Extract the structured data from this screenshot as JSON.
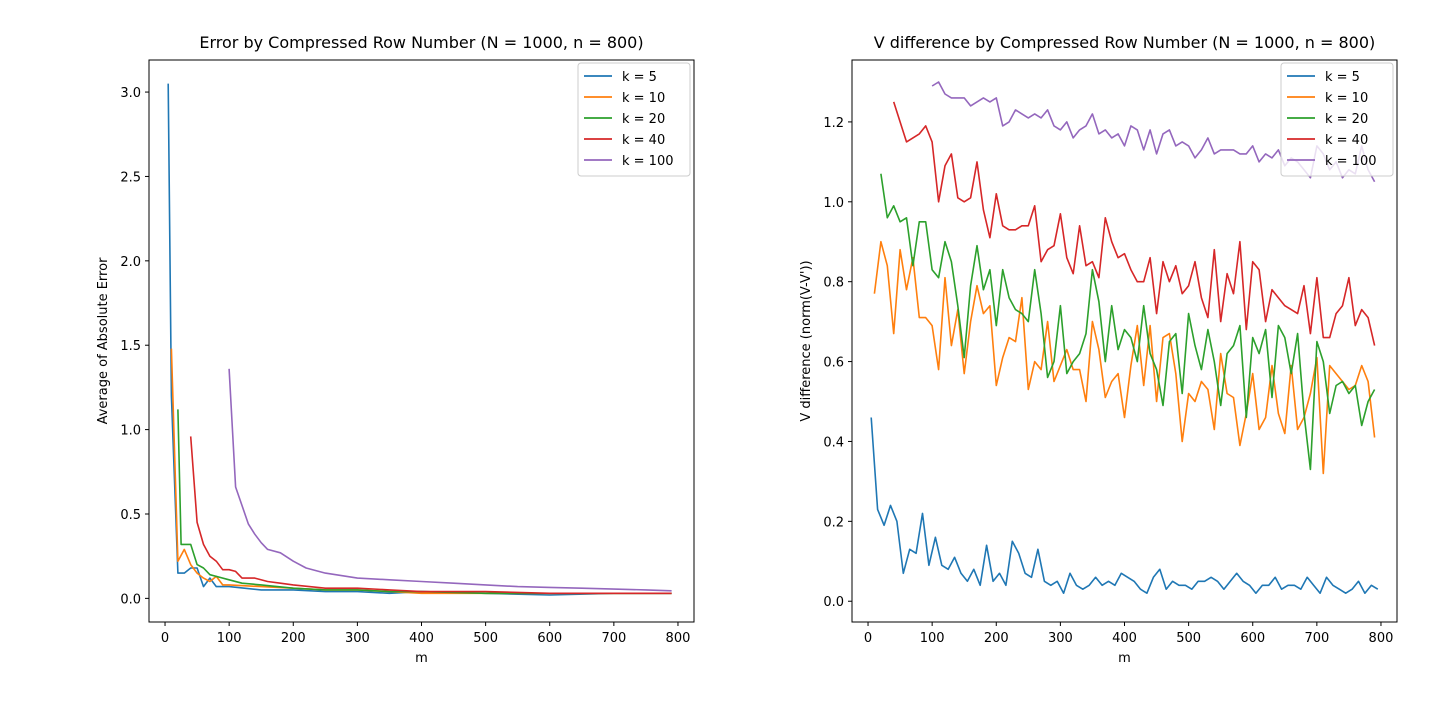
{
  "chart_data": [
    {
      "type": "line",
      "title": "Error by Compressed Row Number (N = 1000, n = 800)",
      "xlabel": "m",
      "ylabel": "Average of Absolute Error",
      "xlim": [
        -25,
        825
      ],
      "ylim": [
        -0.14,
        3.19
      ],
      "xticks": [
        "0",
        "100",
        "200",
        "300",
        "400",
        "500",
        "600",
        "700",
        "800"
      ],
      "yticks": [
        "0.0",
        "0.5",
        "1.0",
        "1.5",
        "2.0",
        "2.5",
        "3.0"
      ],
      "grid": false,
      "legend_position": "top-right",
      "series": [
        {
          "name": "k = 5",
          "color": "#1f77b4",
          "x": [
            5,
            10,
            20,
            30,
            40,
            50,
            60,
            70,
            80,
            90,
            100,
            150,
            200,
            250,
            300,
            350,
            400,
            500,
            600,
            700,
            790
          ],
          "y": [
            3.05,
            1.2,
            0.15,
            0.15,
            0.18,
            0.18,
            0.07,
            0.12,
            0.07,
            0.07,
            0.07,
            0.05,
            0.05,
            0.04,
            0.04,
            0.03,
            0.04,
            0.03,
            0.02,
            0.03,
            0.03
          ]
        },
        {
          "name": "k = 10",
          "color": "#ff7f0e",
          "x": [
            10,
            20,
            30,
            40,
            50,
            60,
            70,
            80,
            90,
            100,
            150,
            200,
            250,
            300,
            350,
            400,
            500,
            600,
            700,
            790
          ],
          "y": [
            1.48,
            0.22,
            0.29,
            0.2,
            0.15,
            0.12,
            0.1,
            0.13,
            0.08,
            0.08,
            0.07,
            0.06,
            0.05,
            0.05,
            0.04,
            0.03,
            0.03,
            0.03,
            0.03,
            0.03
          ]
        },
        {
          "name": "k = 20",
          "color": "#2ca02c",
          "x": [
            20,
            25,
            30,
            40,
            50,
            60,
            70,
            80,
            100,
            120,
            150,
            200,
            250,
            300,
            350,
            400,
            500,
            600,
            700,
            790
          ],
          "y": [
            1.12,
            0.32,
            0.32,
            0.32,
            0.2,
            0.18,
            0.14,
            0.13,
            0.11,
            0.09,
            0.08,
            0.06,
            0.05,
            0.05,
            0.04,
            0.04,
            0.03,
            0.03,
            0.03,
            0.03
          ]
        },
        {
          "name": "k = 40",
          "color": "#d62728",
          "x": [
            40,
            50,
            60,
            70,
            80,
            90,
            100,
            110,
            120,
            140,
            160,
            180,
            200,
            250,
            300,
            350,
            400,
            500,
            600,
            700,
            790
          ],
          "y": [
            0.96,
            0.45,
            0.32,
            0.25,
            0.22,
            0.17,
            0.17,
            0.16,
            0.12,
            0.12,
            0.1,
            0.09,
            0.08,
            0.06,
            0.06,
            0.05,
            0.04,
            0.04,
            0.03,
            0.03,
            0.03
          ]
        },
        {
          "name": "k = 100",
          "color": "#9467bd",
          "x": [
            100,
            110,
            120,
            130,
            140,
            150,
            160,
            180,
            200,
            220,
            250,
            300,
            350,
            400,
            450,
            500,
            550,
            600,
            650,
            700,
            750,
            790
          ],
          "y": [
            1.36,
            0.66,
            0.55,
            0.44,
            0.38,
            0.33,
            0.29,
            0.27,
            0.22,
            0.18,
            0.15,
            0.12,
            0.11,
            0.1,
            0.09,
            0.08,
            0.07,
            0.065,
            0.06,
            0.055,
            0.05,
            0.045
          ]
        }
      ]
    },
    {
      "type": "line",
      "title": "V difference by Compressed Row Number (N = 1000, n = 800)",
      "xlabel": "m",
      "ylabel": "V difference (norm(V-V'))",
      "xlim": [
        -25,
        825
      ],
      "ylim": [
        -0.052,
        1.355
      ],
      "xticks": [
        "0",
        "100",
        "200",
        "300",
        "400",
        "500",
        "600",
        "700",
        "800"
      ],
      "yticks": [
        "0.0",
        "0.2",
        "0.4",
        "0.6",
        "0.8",
        "1.0",
        "1.2"
      ],
      "grid": false,
      "legend_position": "top-right",
      "series": [
        {
          "name": "k = 5",
          "color": "#1f77b4",
          "x": [
            5,
            15,
            25,
            35,
            45,
            55,
            65,
            75,
            85,
            95,
            105,
            115,
            125,
            135,
            145,
            155,
            165,
            175,
            185,
            195,
            205,
            215,
            225,
            235,
            245,
            255,
            265,
            275,
            285,
            295,
            305,
            315,
            325,
            335,
            345,
            355,
            365,
            375,
            385,
            395,
            405,
            415,
            425,
            435,
            445,
            455,
            465,
            475,
            485,
            495,
            505,
            515,
            525,
            535,
            545,
            555,
            565,
            575,
            585,
            595,
            605,
            615,
            625,
            635,
            645,
            655,
            665,
            675,
            685,
            695,
            705,
            715,
            725,
            735,
            745,
            755,
            765,
            775,
            785,
            795
          ],
          "y": [
            0.46,
            0.23,
            0.19,
            0.24,
            0.2,
            0.07,
            0.13,
            0.12,
            0.22,
            0.09,
            0.16,
            0.09,
            0.08,
            0.11,
            0.07,
            0.05,
            0.08,
            0.04,
            0.14,
            0.05,
            0.07,
            0.04,
            0.15,
            0.12,
            0.07,
            0.06,
            0.13,
            0.05,
            0.04,
            0.05,
            0.02,
            0.07,
            0.04,
            0.03,
            0.04,
            0.06,
            0.04,
            0.05,
            0.04,
            0.07,
            0.06,
            0.05,
            0.03,
            0.02,
            0.06,
            0.08,
            0.03,
            0.05,
            0.04,
            0.04,
            0.03,
            0.05,
            0.05,
            0.06,
            0.05,
            0.03,
            0.05,
            0.07,
            0.05,
            0.04,
            0.02,
            0.04,
            0.04,
            0.06,
            0.03,
            0.04,
            0.04,
            0.03,
            0.06,
            0.04,
            0.02,
            0.06,
            0.04,
            0.03,
            0.02,
            0.03,
            0.05,
            0.02,
            0.04,
            0.03
          ]
        },
        {
          "name": "k = 10",
          "color": "#ff7f0e",
          "x": [
            10,
            20,
            30,
            40,
            50,
            60,
            70,
            80,
            90,
            100,
            110,
            120,
            130,
            140,
            150,
            160,
            170,
            180,
            190,
            200,
            210,
            220,
            230,
            240,
            250,
            260,
            270,
            280,
            290,
            300,
            310,
            320,
            330,
            340,
            350,
            360,
            370,
            380,
            390,
            400,
            410,
            420,
            430,
            440,
            450,
            460,
            470,
            480,
            490,
            500,
            510,
            520,
            530,
            540,
            550,
            560,
            570,
            580,
            590,
            600,
            610,
            620,
            630,
            640,
            650,
            660,
            670,
            680,
            690,
            700,
            710,
            720,
            730,
            740,
            750,
            760,
            770,
            780,
            790
          ],
          "y": [
            0.77,
            0.9,
            0.84,
            0.67,
            0.88,
            0.78,
            0.86,
            0.71,
            0.71,
            0.69,
            0.58,
            0.81,
            0.64,
            0.73,
            0.57,
            0.7,
            0.79,
            0.72,
            0.74,
            0.54,
            0.61,
            0.66,
            0.65,
            0.76,
            0.53,
            0.6,
            0.58,
            0.7,
            0.55,
            0.59,
            0.63,
            0.58,
            0.58,
            0.5,
            0.7,
            0.63,
            0.51,
            0.55,
            0.57,
            0.46,
            0.59,
            0.69,
            0.54,
            0.69,
            0.5,
            0.66,
            0.67,
            0.57,
            0.4,
            0.52,
            0.5,
            0.55,
            0.53,
            0.43,
            0.62,
            0.52,
            0.51,
            0.39,
            0.47,
            0.57,
            0.43,
            0.46,
            0.59,
            0.47,
            0.42,
            0.59,
            0.43,
            0.46,
            0.52,
            0.61,
            0.32,
            0.59,
            0.57,
            0.55,
            0.53,
            0.54,
            0.59,
            0.55,
            0.41
          ]
        },
        {
          "name": "k = 20",
          "color": "#2ca02c",
          "x": [
            20,
            30,
            40,
            50,
            60,
            70,
            80,
            90,
            100,
            110,
            120,
            130,
            140,
            150,
            160,
            170,
            180,
            190,
            200,
            210,
            220,
            230,
            240,
            250,
            260,
            270,
            280,
            290,
            300,
            310,
            320,
            330,
            340,
            350,
            360,
            370,
            380,
            390,
            400,
            410,
            420,
            430,
            440,
            450,
            460,
            470,
            480,
            490,
            500,
            510,
            520,
            530,
            540,
            550,
            560,
            570,
            580,
            590,
            600,
            610,
            620,
            630,
            640,
            650,
            660,
            670,
            680,
            690,
            700,
            710,
            720,
            730,
            740,
            750,
            760,
            770,
            780,
            790
          ],
          "y": [
            1.07,
            0.96,
            0.99,
            0.95,
            0.96,
            0.84,
            0.95,
            0.95,
            0.83,
            0.81,
            0.9,
            0.85,
            0.74,
            0.61,
            0.79,
            0.89,
            0.78,
            0.83,
            0.69,
            0.83,
            0.76,
            0.73,
            0.72,
            0.7,
            0.83,
            0.72,
            0.56,
            0.6,
            0.74,
            0.57,
            0.6,
            0.62,
            0.67,
            0.83,
            0.75,
            0.6,
            0.74,
            0.63,
            0.68,
            0.66,
            0.6,
            0.74,
            0.62,
            0.58,
            0.49,
            0.65,
            0.67,
            0.52,
            0.72,
            0.64,
            0.58,
            0.68,
            0.6,
            0.49,
            0.62,
            0.64,
            0.69,
            0.46,
            0.66,
            0.62,
            0.68,
            0.51,
            0.69,
            0.66,
            0.57,
            0.67,
            0.47,
            0.33,
            0.65,
            0.6,
            0.47,
            0.54,
            0.55,
            0.52,
            0.54,
            0.44,
            0.5,
            0.53
          ]
        },
        {
          "name": "k = 40",
          "color": "#d62728",
          "x": [
            40,
            50,
            60,
            70,
            80,
            90,
            100,
            110,
            120,
            130,
            140,
            150,
            160,
            170,
            180,
            190,
            200,
            210,
            220,
            230,
            240,
            250,
            260,
            270,
            280,
            290,
            300,
            310,
            320,
            330,
            340,
            350,
            360,
            370,
            380,
            390,
            400,
            410,
            420,
            430,
            440,
            450,
            460,
            470,
            480,
            490,
            500,
            510,
            520,
            530,
            540,
            550,
            560,
            570,
            580,
            590,
            600,
            610,
            620,
            630,
            640,
            650,
            660,
            670,
            680,
            690,
            700,
            710,
            720,
            730,
            740,
            750,
            760,
            770,
            780,
            790
          ],
          "y": [
            1.25,
            1.2,
            1.15,
            1.16,
            1.17,
            1.19,
            1.15,
            1.0,
            1.09,
            1.12,
            1.01,
            1.0,
            1.01,
            1.1,
            0.98,
            0.91,
            1.02,
            0.94,
            0.93,
            0.93,
            0.94,
            0.94,
            0.99,
            0.85,
            0.88,
            0.89,
            0.97,
            0.86,
            0.82,
            0.94,
            0.84,
            0.85,
            0.81,
            0.96,
            0.9,
            0.86,
            0.87,
            0.83,
            0.8,
            0.8,
            0.86,
            0.72,
            0.85,
            0.8,
            0.84,
            0.77,
            0.79,
            0.85,
            0.76,
            0.71,
            0.88,
            0.7,
            0.82,
            0.77,
            0.9,
            0.68,
            0.85,
            0.83,
            0.7,
            0.78,
            0.76,
            0.74,
            0.73,
            0.72,
            0.79,
            0.67,
            0.81,
            0.66,
            0.66,
            0.72,
            0.74,
            0.81,
            0.69,
            0.73,
            0.71,
            0.64
          ]
        },
        {
          "name": "k = 100",
          "color": "#9467bd",
          "x": [
            100,
            110,
            120,
            130,
            140,
            150,
            160,
            170,
            180,
            190,
            200,
            210,
            220,
            230,
            240,
            250,
            260,
            270,
            280,
            290,
            300,
            310,
            320,
            330,
            340,
            350,
            360,
            370,
            380,
            390,
            400,
            410,
            420,
            430,
            440,
            450,
            460,
            470,
            480,
            490,
            500,
            510,
            520,
            530,
            540,
            550,
            560,
            570,
            580,
            590,
            600,
            610,
            620,
            630,
            640,
            650,
            660,
            670,
            680,
            690,
            700,
            710,
            720,
            730,
            740,
            750,
            760,
            770,
            780,
            790
          ],
          "y": [
            1.29,
            1.3,
            1.27,
            1.26,
            1.26,
            1.26,
            1.24,
            1.25,
            1.26,
            1.25,
            1.26,
            1.19,
            1.2,
            1.23,
            1.22,
            1.21,
            1.22,
            1.21,
            1.23,
            1.19,
            1.18,
            1.2,
            1.16,
            1.18,
            1.19,
            1.22,
            1.17,
            1.18,
            1.16,
            1.17,
            1.14,
            1.19,
            1.18,
            1.13,
            1.18,
            1.12,
            1.17,
            1.18,
            1.14,
            1.15,
            1.14,
            1.11,
            1.13,
            1.16,
            1.12,
            1.13,
            1.13,
            1.13,
            1.12,
            1.12,
            1.14,
            1.1,
            1.12,
            1.11,
            1.13,
            1.09,
            1.11,
            1.1,
            1.08,
            1.06,
            1.14,
            1.12,
            1.08,
            1.1,
            1.06,
            1.08,
            1.07,
            1.14,
            1.08,
            1.05
          ]
        }
      ]
    }
  ]
}
